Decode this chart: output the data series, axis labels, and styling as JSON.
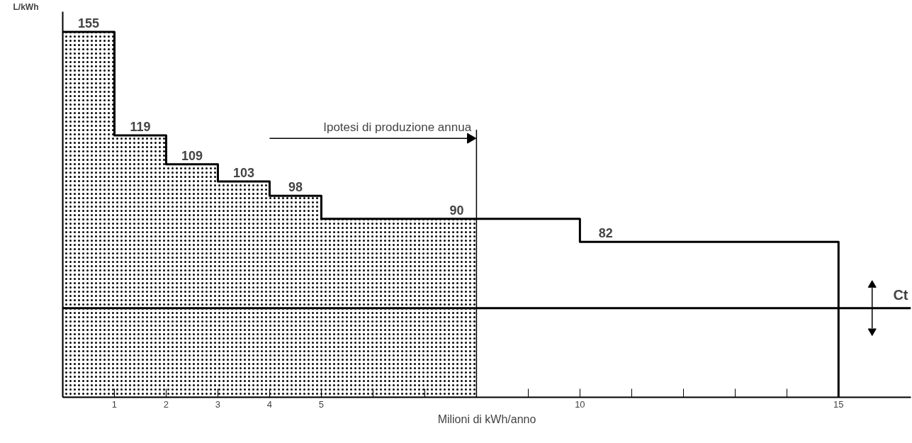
{
  "chart_data": {
    "type": "step",
    "xlabel": "Milioni di kWh/anno",
    "ylabel": "L/kWh",
    "xlim": [
      0,
      16.4
    ],
    "ylim": [
      28,
      162
    ],
    "xticks": [
      {
        "value": 1,
        "label": "1"
      },
      {
        "value": 2,
        "label": "2"
      },
      {
        "value": 3,
        "label": "3"
      },
      {
        "value": 4,
        "label": "4"
      },
      {
        "value": 5,
        "label": "5"
      },
      {
        "value": 6,
        "label": null
      },
      {
        "value": 7,
        "label": null
      },
      {
        "value": 8,
        "label": null
      },
      {
        "value": 9,
        "label": null
      },
      {
        "value": 10,
        "label": "10"
      },
      {
        "value": 11,
        "label": null
      },
      {
        "value": 12,
        "label": null
      },
      {
        "value": 13,
        "label": null
      },
      {
        "value": 14,
        "label": null
      },
      {
        "value": 15,
        "label": "15"
      }
    ],
    "tick_labels": "x",
    "grid": false,
    "series": [
      {
        "type": "area",
        "color": "#000000",
        "x": [
          0,
          1,
          2,
          3,
          4,
          5,
          8
        ],
        "values": [
          155,
          119,
          109,
          103,
          98,
          90,
          90
        ]
      },
      {
        "color": "#000000",
        "x": [
          0,
          1,
          2,
          3,
          4,
          5,
          8,
          10,
          15,
          15
        ],
        "values": [
          155,
          119,
          109,
          103,
          98,
          90,
          90,
          82,
          82,
          28
        ],
        "value_labels": [
          "155",
          "119",
          "109",
          "103",
          "98",
          null,
          "90",
          "82",
          null,
          null
        ]
      }
    ],
    "ref_lines": [
      {
        "axis": "y",
        "value": 59,
        "label": "Ct",
        "color": "#000000"
      }
    ],
    "annotations": [
      "Ipotesi di produzione annua"
    ]
  }
}
